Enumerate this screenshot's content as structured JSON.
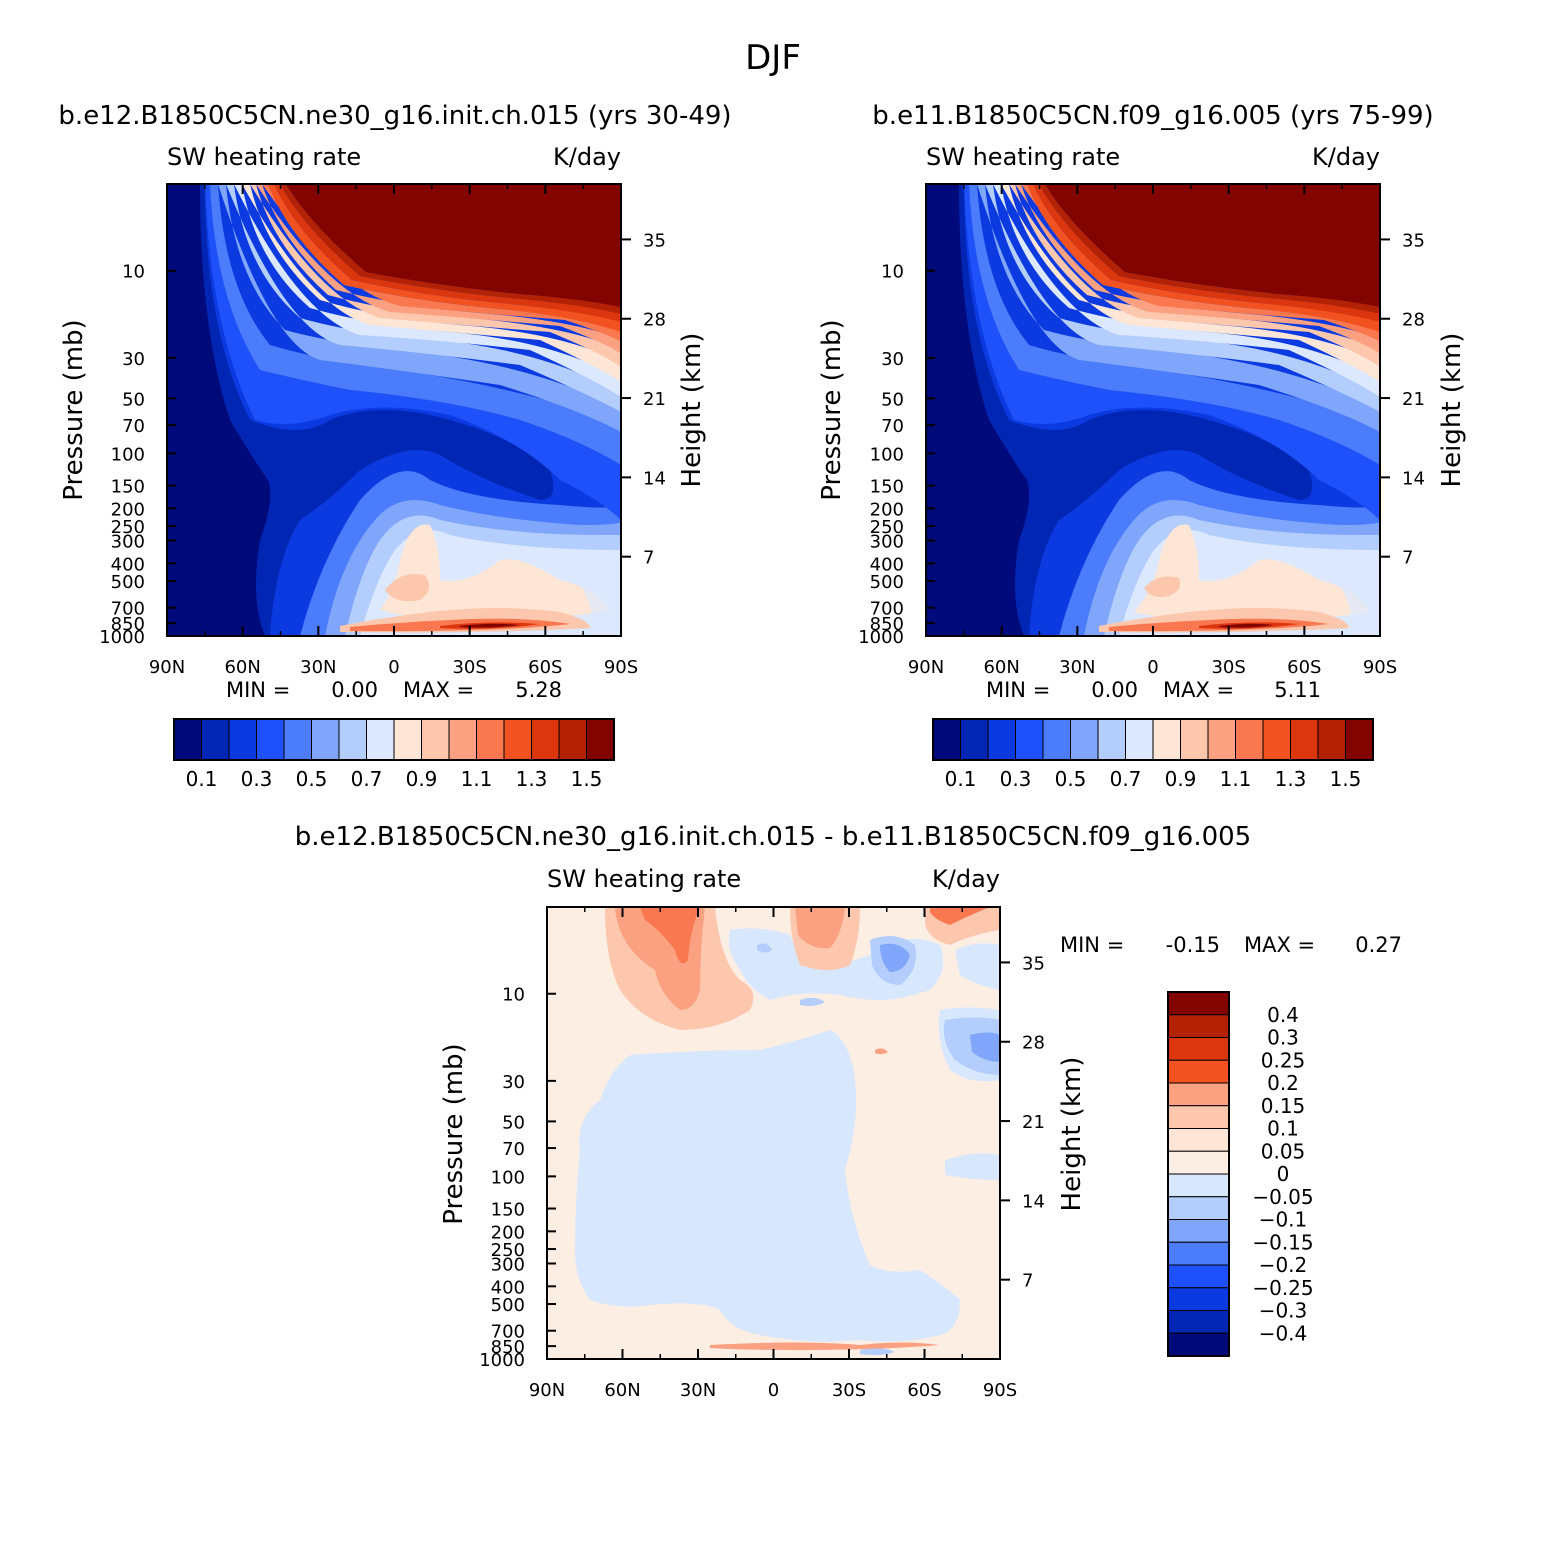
{
  "figure": {
    "title": "DJF"
  },
  "chart_data": [
    {
      "type": "heatmap",
      "id": "panel1",
      "title": "b.e12.B1850C5CN.ne30_g16.init.ch.015 (yrs 30-49)",
      "left_label": "SW heating rate",
      "right_label": "K/day",
      "ylabel": "Pressure (mb)",
      "y2label": "Height (km)",
      "x_ticklabels": [
        "90N",
        "60N",
        "30N",
        "0",
        "30S",
        "60S",
        "90S"
      ],
      "y_ticklabels": [
        "10",
        "30",
        "50",
        "70",
        "100",
        "150",
        "200",
        "250",
        "300",
        "400",
        "500",
        "700",
        "850",
        "1000"
      ],
      "y2_ticklabels": [
        "35",
        "28",
        "21",
        "14",
        "7"
      ],
      "stats": {
        "min_label": "MIN =",
        "min": "0.00",
        "max_label": "MAX =",
        "max": "5.28"
      },
      "colorbar_labels": [
        "0.1",
        "0.3",
        "0.5",
        "0.7",
        "0.9",
        "1.1",
        "1.3",
        "1.5"
      ],
      "colorbar_colors": [
        "#000a7a",
        "#0026b3",
        "#0a3ae0",
        "#1f51fa",
        "#4a7cfb",
        "#7fa6fb",
        "#b3cdfd",
        "#dbe8fd",
        "#fde6d6",
        "#fcc7ad",
        "#fba182",
        "#f97850",
        "#f2521f",
        "#dc360f",
        "#b32205",
        "#820400"
      ]
    },
    {
      "type": "heatmap",
      "id": "panel2",
      "title": "b.e11.B1850C5CN.f09_g16.005 (yrs 75-99)",
      "left_label": "SW heating rate",
      "right_label": "K/day",
      "ylabel": "Pressure (mb)",
      "y2label": "Height (km)",
      "x_ticklabels": [
        "90N",
        "60N",
        "30N",
        "0",
        "30S",
        "60S",
        "90S"
      ],
      "y_ticklabels": [
        "10",
        "30",
        "50",
        "70",
        "100",
        "150",
        "200",
        "250",
        "300",
        "400",
        "500",
        "700",
        "850",
        "1000"
      ],
      "y2_ticklabels": [
        "35",
        "28",
        "21",
        "14",
        "7"
      ],
      "stats": {
        "min_label": "MIN =",
        "min": "0.00",
        "max_label": "MAX =",
        "max": "5.11"
      },
      "colorbar_labels": [
        "0.1",
        "0.3",
        "0.5",
        "0.7",
        "0.9",
        "1.1",
        "1.3",
        "1.5"
      ],
      "colorbar_colors": [
        "#000a7a",
        "#0026b3",
        "#0a3ae0",
        "#1f51fa",
        "#4a7cfb",
        "#7fa6fb",
        "#b3cdfd",
        "#dbe8fd",
        "#fde6d6",
        "#fcc7ad",
        "#fba182",
        "#f97850",
        "#f2521f",
        "#dc360f",
        "#b32205",
        "#820400"
      ]
    },
    {
      "type": "heatmap",
      "id": "panel3",
      "title": "b.e12.B1850C5CN.ne30_g16.init.ch.015 - b.e11.B1850C5CN.f09_g16.005",
      "left_label": "SW heating rate",
      "right_label": "K/day",
      "ylabel": "Pressure (mb)",
      "y2label": "Height (km)",
      "x_ticklabels": [
        "90N",
        "60N",
        "30N",
        "0",
        "30S",
        "60S",
        "90S"
      ],
      "y_ticklabels": [
        "10",
        "30",
        "50",
        "70",
        "100",
        "150",
        "200",
        "250",
        "300",
        "400",
        "500",
        "700",
        "850",
        "1000"
      ],
      "y2_ticklabels": [
        "35",
        "28",
        "21",
        "14",
        "7"
      ],
      "stats": {
        "min_label": "MIN =",
        "min": "-0.15",
        "max_label": "MAX =",
        "max": "0.27"
      },
      "colorbar_labels": [
        "0.4",
        "0.3",
        "0.25",
        "0.2",
        "0.15",
        "0.1",
        "0.05",
        "0",
        "-0.05",
        "-0.1",
        "-0.15",
        "-0.2",
        "-0.25",
        "-0.3",
        "-0.4"
      ],
      "colorbar_colors": [
        "#820400",
        "#b32205",
        "#dc360f",
        "#f2521f",
        "#fba182",
        "#fcc7ad",
        "#fde6d6",
        "#fdeee4",
        "#d7e7fd",
        "#b3cdfd",
        "#7fa6fb",
        "#4a7cfb",
        "#1f51fa",
        "#0a3ae0",
        "#0026b3",
        "#000a7a"
      ]
    }
  ]
}
